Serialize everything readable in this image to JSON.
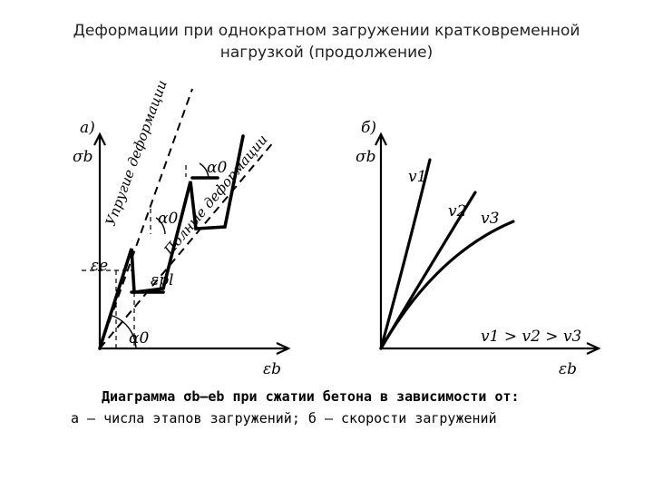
{
  "title": {
    "line1": "Деформации при однократном загружении кратковременной",
    "line2": "нагрузкой (продолжение)"
  },
  "figure": {
    "panel_a": {
      "label": "а)",
      "y_axis": "σb",
      "x_axis": "εb",
      "elastic_line": "Упругие деформации",
      "total_line": "Полные деформации",
      "alpha": "α0",
      "eps_e": "εe",
      "eps_pl": "εpl"
    },
    "panel_b": {
      "label": "б)",
      "y_axis": "σb",
      "x_axis": "εb",
      "v1": "v1",
      "v2": "v2",
      "v3": "v3",
      "relation": "v1 > v2 > v3"
    },
    "caption": {
      "line1": "Диаграмма σb—eb при сжатии бетона в зависимости от:",
      "line2": "а — числа этапов загружений;       б — скорости загружений"
    }
  }
}
